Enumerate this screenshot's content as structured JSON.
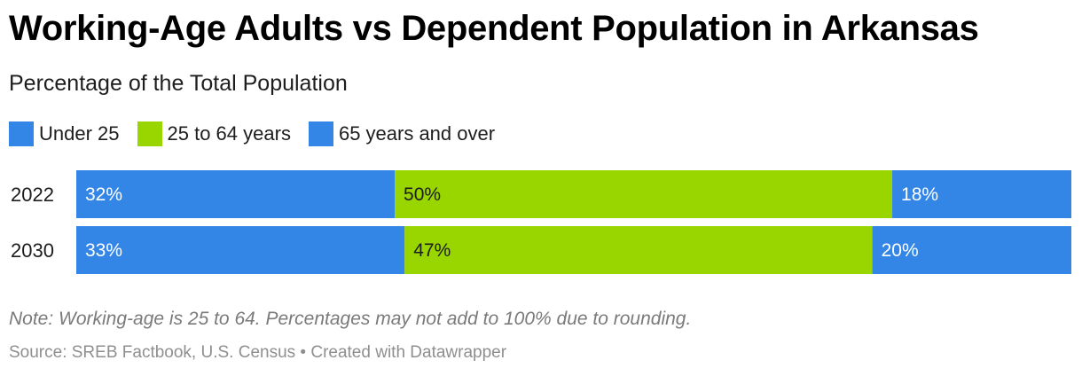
{
  "header": {
    "title": "Working-Age Adults vs Dependent Population in Arkansas",
    "subtitle": "Percentage of the Total Population"
  },
  "legend": {
    "items": [
      {
        "label": "Under 25",
        "color": "#3385e6"
      },
      {
        "label": "25 to 64 years",
        "color": "#99d600"
      },
      {
        "label": "65 years and over",
        "color": "#3385e6"
      }
    ]
  },
  "footer": {
    "note": "Note: Working-age is 25 to 64. Percentages may not add to 100% due to rounding.",
    "source": "Source: SREB Factbook, U.S. Census • Created with Datawrapper"
  },
  "chart_data": {
    "type": "bar",
    "stacked": true,
    "orientation": "horizontal",
    "categories": [
      "2022",
      "2030"
    ],
    "series": [
      {
        "name": "Under 25",
        "values": [
          32,
          33
        ],
        "labels": [
          "32%",
          "33%"
        ],
        "color": "#3385e6",
        "label_color": "#ffffff"
      },
      {
        "name": "25 to 64 years",
        "values": [
          50,
          47
        ],
        "labels": [
          "50%",
          "47%"
        ],
        "color": "#99d600",
        "label_color": "#1d1d1d"
      },
      {
        "name": "65 years and over",
        "values": [
          18,
          20
        ],
        "labels": [
          "18%",
          "20%"
        ],
        "color": "#3385e6",
        "label_color": "#ffffff"
      }
    ],
    "xlim": [
      0,
      100
    ],
    "grid": false,
    "legend_position": "top-left"
  }
}
